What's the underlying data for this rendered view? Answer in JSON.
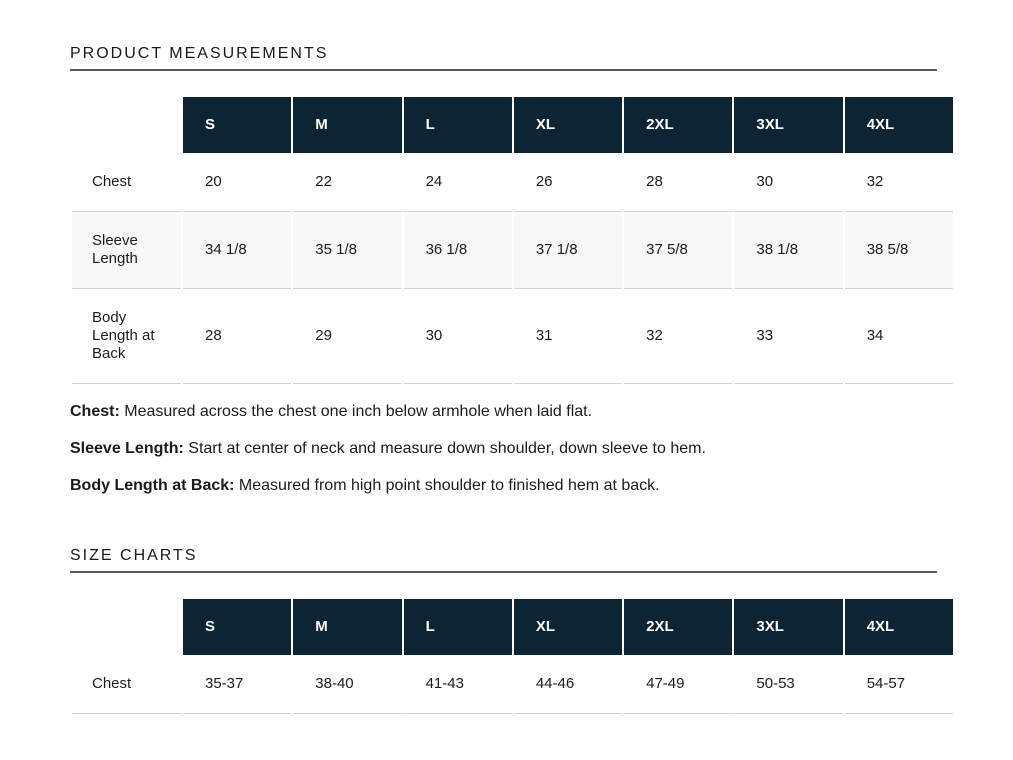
{
  "colors": {
    "header_bg": "#0c2433",
    "header_text": "#ffffff",
    "stripe_row_bg": "#f8f8f8",
    "row_border": "#d5d5d5",
    "title_underline": "#58595b",
    "body_text": "#1b1b1b"
  },
  "product_measurements": {
    "title": "PRODUCT MEASUREMENTS",
    "table": {
      "sizes": [
        "S",
        "M",
        "L",
        "XL",
        "2XL",
        "3XL",
        "4XL"
      ],
      "rows": [
        {
          "label": "Chest",
          "values": [
            "20",
            "22",
            "24",
            "26",
            "28",
            "30",
            "32"
          ]
        },
        {
          "label": "Sleeve Length",
          "values": [
            "34 1/8",
            "35 1/8",
            "36 1/8",
            "37 1/8",
            "37 5/8",
            "38 1/8",
            "38 5/8"
          ]
        },
        {
          "label": "Body Length at Back",
          "values": [
            "28",
            "29",
            "30",
            "31",
            "32",
            "33",
            "34"
          ]
        }
      ]
    },
    "notes": [
      {
        "term": "Chest:",
        "text": "Measured across the chest one inch below armhole when laid flat."
      },
      {
        "term": "Sleeve Length:",
        "text": "Start at center of neck and measure down shoulder, down sleeve to hem."
      },
      {
        "term": "Body Length at Back:",
        "text": "Measured from high point shoulder to finished hem at back."
      }
    ]
  },
  "size_charts": {
    "title": "SIZE CHARTS",
    "table": {
      "sizes": [
        "S",
        "M",
        "L",
        "XL",
        "2XL",
        "3XL",
        "4XL"
      ],
      "rows": [
        {
          "label": "Chest",
          "values": [
            "35-37",
            "38-40",
            "41-43",
            "44-46",
            "47-49",
            "50-53",
            "54-57"
          ]
        }
      ]
    }
  }
}
